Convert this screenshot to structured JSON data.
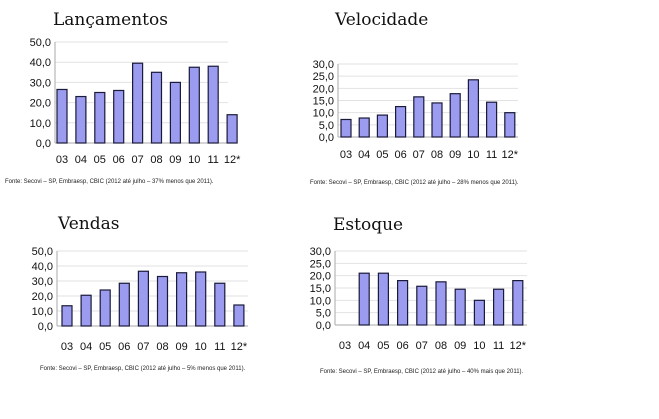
{
  "chart_data": [
    {
      "type": "bar",
      "title": "Lançamentos",
      "categories": [
        "03",
        "04",
        "05",
        "06",
        "07",
        "08",
        "09",
        "10",
        "11",
        "12*"
      ],
      "values": [
        26.5,
        23.0,
        25.0,
        26.0,
        39.5,
        35.0,
        30.0,
        37.5,
        38.0,
        14.0
      ],
      "ylim": [
        0,
        50
      ],
      "yticks": [
        "0,0",
        "10,0",
        "20,0",
        "30,0",
        "40,0",
        "50,0"
      ],
      "xlabel": "",
      "ylabel": "",
      "grid": true,
      "source": "Fonte: Secovi – SP, Embraesp, CBIC (2012 até julho – 37% menos que 2011).",
      "bar_color": "#9b9bef"
    },
    {
      "type": "bar",
      "title": "Velocidade",
      "categories": [
        "03",
        "04",
        "05",
        "06",
        "07",
        "08",
        "09",
        "10",
        "11",
        "12*"
      ],
      "values": [
        7.2,
        7.8,
        9.0,
        12.5,
        16.5,
        14.0,
        17.8,
        23.5,
        14.3,
        10.0
      ],
      "ylim": [
        0,
        30
      ],
      "yticks": [
        "0,0",
        "5,0",
        "10,0",
        "15,0",
        "20,0",
        "25,0",
        "30,0"
      ],
      "xlabel": "",
      "ylabel": "",
      "grid": true,
      "source": "Fonte: Secovi – SP, Embraesp, CBIC (2012 até julho – 28% menos que 2011).",
      "bar_color": "#9b9bef"
    },
    {
      "type": "bar",
      "title": "Vendas",
      "categories": [
        "03",
        "04",
        "05",
        "06",
        "07",
        "08",
        "09",
        "10",
        "11",
        "12*"
      ],
      "values": [
        13.5,
        20.5,
        24.0,
        28.5,
        36.5,
        33.0,
        35.5,
        36.0,
        28.5,
        14.0
      ],
      "ylim": [
        0,
        50
      ],
      "yticks": [
        "0,0",
        "10,0",
        "20,0",
        "30,0",
        "40,0",
        "50,0"
      ],
      "xlabel": "",
      "ylabel": "",
      "grid": true,
      "source": "Fonte: Secovi – SP, Embraesp, CBIC (2012 até julho – 5% menos que 2011).",
      "bar_color": "#9b9bef"
    },
    {
      "type": "bar",
      "title": "Estoque",
      "categories": [
        "03",
        "04",
        "05",
        "06",
        "07",
        "08",
        "09",
        "10",
        "11",
        "12*"
      ],
      "values": [
        null,
        21.0,
        21.0,
        18.0,
        15.7,
        17.5,
        14.5,
        10.0,
        14.5,
        18.0
      ],
      "ylim": [
        0,
        30
      ],
      "yticks": [
        "0,0",
        "5,0",
        "10,0",
        "15,0",
        "20,0",
        "25,0",
        "30,0"
      ],
      "xlabel": "",
      "ylabel": "",
      "grid": true,
      "source": "Fonte: Secovi – SP, Embraesp, CBIC (2012 até julho – 40% mais que 2011).",
      "bar_color": "#9b9bef"
    }
  ]
}
